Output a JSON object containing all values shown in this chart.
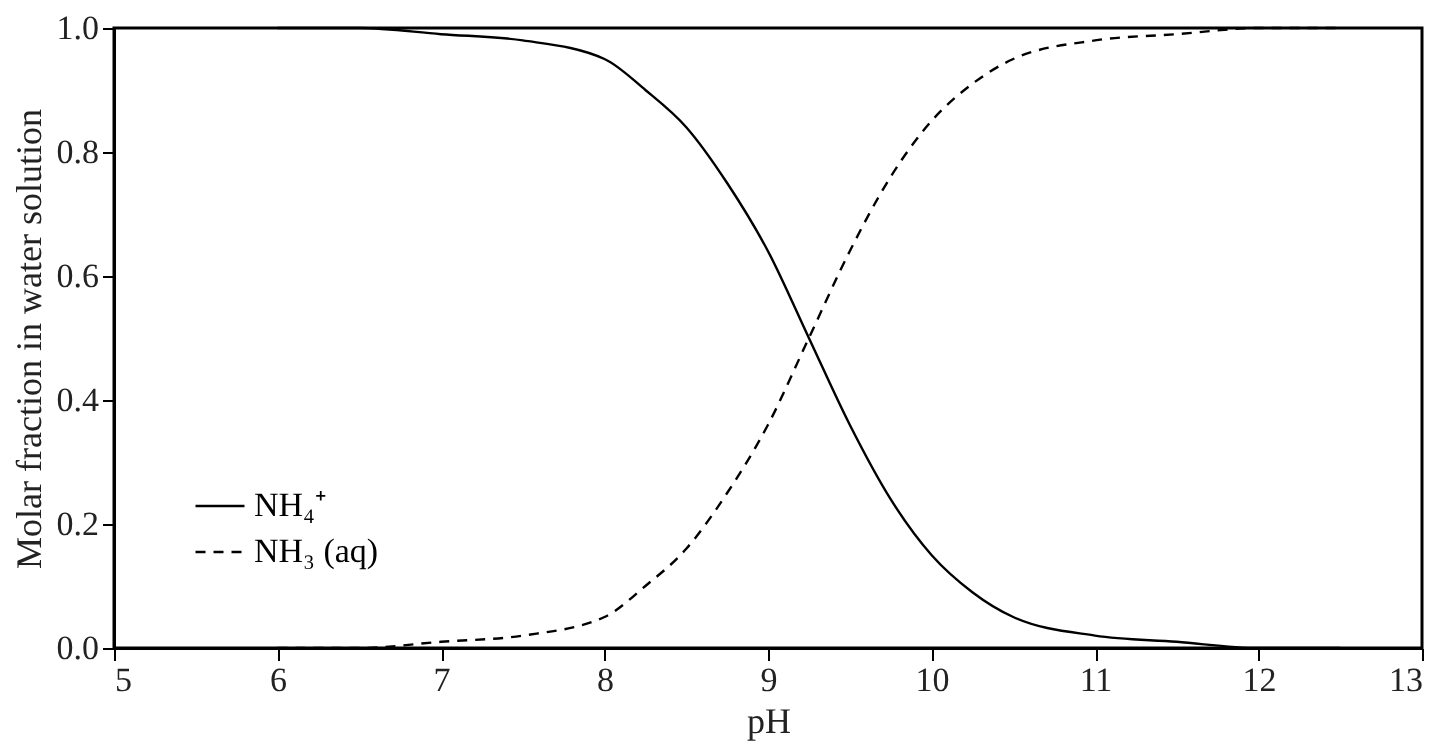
{
  "chart_data": {
    "type": "line",
    "xlabel": "pH",
    "ylabel": "Molar fraction in water solution",
    "x": [
      6,
      6.5,
      7,
      7.5,
      8,
      8.25,
      8.5,
      8.75,
      9,
      9.25,
      9.5,
      9.75,
      10,
      10.25,
      10.5,
      11,
      11.5,
      12,
      12.5
    ],
    "series": [
      {
        "name": "NH₄⁺",
        "color": "#000000",
        "line_style": "solid",
        "values": [
          1.0,
          1.0,
          0.99,
          0.98,
          0.95,
          0.9,
          0.84,
          0.75,
          0.64,
          0.5,
          0.36,
          0.24,
          0.15,
          0.09,
          0.05,
          0.02,
          0.01,
          0.0,
          0.0
        ]
      },
      {
        "name": "NH₃ (aq)",
        "color": "#000000",
        "line_style": "dashed",
        "values": [
          0.0,
          0.0,
          0.01,
          0.02,
          0.05,
          0.1,
          0.16,
          0.25,
          0.36,
          0.5,
          0.64,
          0.76,
          0.85,
          0.91,
          0.95,
          0.98,
          0.99,
          1.0,
          1.0
        ]
      }
    ],
    "xlim": [
      5,
      13
    ],
    "xticks": [
      5,
      6,
      7,
      8,
      9,
      10,
      11,
      12,
      13
    ],
    "ylim": [
      0,
      1
    ],
    "yticks": [
      {
        "value": 0,
        "label": "0.0"
      },
      {
        "value": 0.2,
        "label": "0.2"
      },
      {
        "value": 0.4,
        "label": "0.4"
      },
      {
        "value": 0.6,
        "label": "0.6"
      },
      {
        "value": 0.8,
        "label": "0.8"
      },
      {
        "value": 1,
        "label": "1.0"
      }
    ],
    "legend": "bottom left",
    "grid": false,
    "marker": "none"
  }
}
